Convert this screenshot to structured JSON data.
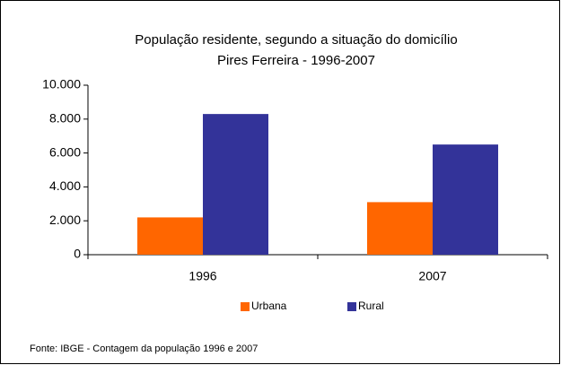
{
  "chart_data": {
    "type": "bar",
    "title": "População residente, segundo a situação do domicílio",
    "subtitle": "Pires  Ferreira  - 1996-2007",
    "categories": [
      "1996",
      "2007"
    ],
    "series": [
      {
        "name": "Urbana",
        "color": "#ff6600",
        "values": [
          2200,
          3100
        ]
      },
      {
        "name": "Rural",
        "color": "#333399",
        "values": [
          8300,
          6500
        ]
      }
    ],
    "ylim": [
      0,
      10000
    ],
    "yticks": [
      0,
      {
        "value": 2000,
        "label": "2.000"
      },
      {
        "value": 4000,
        "label": "4.000"
      },
      {
        "value": 6000,
        "label": "6.000"
      },
      {
        "value": 8000,
        "label": "8.000"
      },
      {
        "value": 10000,
        "label": "10.000"
      }
    ],
    "legend": "bottom",
    "source": "Fonte: IBGE - Contagem da população 1996 e 2007"
  }
}
